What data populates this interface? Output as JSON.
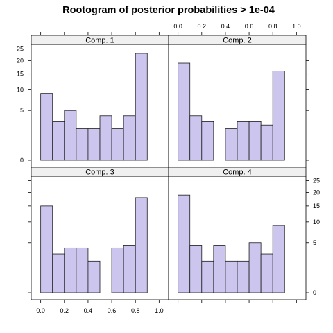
{
  "chart_data": {
    "type": "bar",
    "title": "Rootogram of posterior probabilities > 1e-04",
    "xlabel": "",
    "ylabel": "",
    "scale": "sqrt",
    "xlim": [
      -0.08,
      1.08
    ],
    "ylim": [
      0,
      25
    ],
    "x_ticks": [
      "0.0",
      "0.2",
      "0.4",
      "0.6",
      "0.8",
      "1.0"
    ],
    "y_ticks": [
      "0",
      "5",
      "10",
      "15",
      "20",
      "25"
    ],
    "bins": [
      [
        0.0,
        0.1
      ],
      [
        0.1,
        0.2
      ],
      [
        0.2,
        0.3
      ],
      [
        0.3,
        0.4
      ],
      [
        0.4,
        0.5
      ],
      [
        0.5,
        0.6
      ],
      [
        0.6,
        0.7
      ],
      [
        0.7,
        0.8
      ],
      [
        0.8,
        0.9
      ],
      [
        0.9,
        1.0
      ]
    ],
    "bar_fill": "#ccc6ef",
    "bar_stroke": "#1a1a1a",
    "strip_fill": "#f0f0f0",
    "panels": [
      {
        "name": "Comp. 1",
        "values": [
          9,
          3,
          5,
          2,
          2,
          4,
          2,
          4,
          23,
          0
        ]
      },
      {
        "name": "Comp. 2",
        "values": [
          19,
          4,
          3,
          0,
          2,
          3,
          3,
          2.5,
          16,
          0
        ]
      },
      {
        "name": "Comp. 3",
        "values": [
          15,
          3,
          4,
          4,
          2,
          0,
          4,
          4.5,
          18,
          0
        ]
      },
      {
        "name": "Comp. 4",
        "values": [
          19,
          4.5,
          2,
          4.5,
          2,
          2,
          5,
          3,
          9,
          0
        ]
      }
    ]
  }
}
